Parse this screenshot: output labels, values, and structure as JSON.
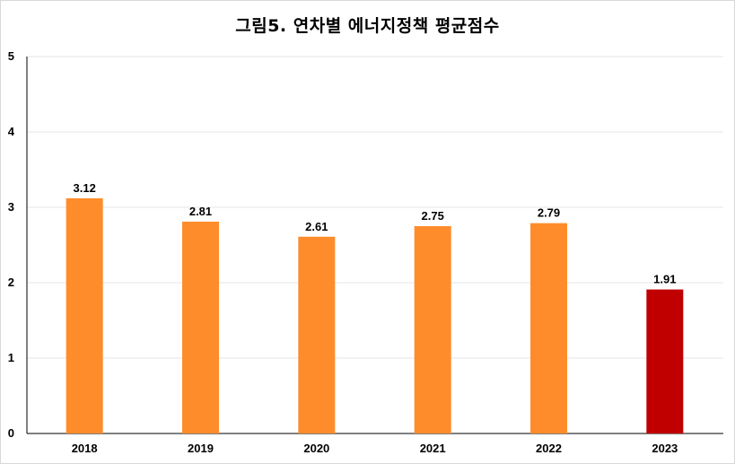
{
  "chart_data": {
    "type": "bar",
    "title": "그림5. 연차별 에너지정책 평균점수",
    "categories": [
      "2018",
      "2019",
      "2020",
      "2021",
      "2022",
      "2023"
    ],
    "values": [
      3.12,
      2.81,
      2.61,
      2.75,
      2.79,
      1.91
    ],
    "value_labels": [
      "3.12",
      "2.81",
      "2.61",
      "2.75",
      "2.79",
      "1.91"
    ],
    "y_ticks": [
      "0",
      "1",
      "2",
      "3",
      "4",
      "5"
    ],
    "ylim": [
      0,
      5
    ],
    "xlabel": "",
    "ylabel": "",
    "grid": true,
    "legend": "none",
    "bar_colors": [
      "#ff8c2a",
      "#ff8c2a",
      "#ff8c2a",
      "#ff8c2a",
      "#ff8c2a",
      "#c00000"
    ],
    "grid_color": "#e6e6e6",
    "axis_color": "#000000"
  }
}
